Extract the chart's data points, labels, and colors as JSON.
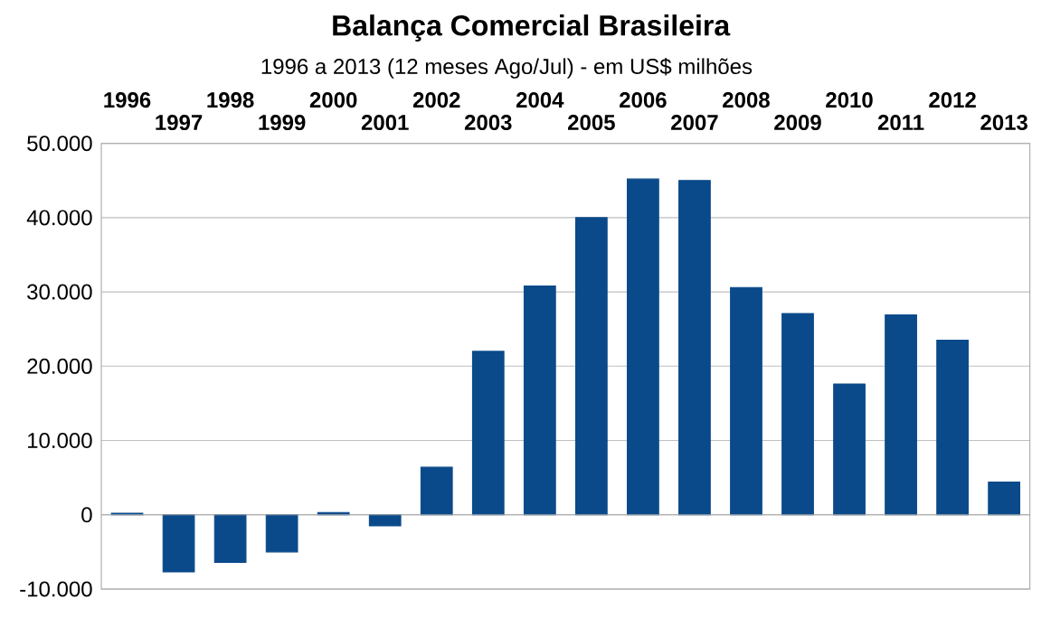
{
  "chart_data": {
    "type": "bar",
    "title": "Balança Comercial Brasileira",
    "subtitle": "1996 a 2013 (12 meses Ago/Jul) - em US$ milhões",
    "categories": [
      "1996",
      "1997",
      "1998",
      "1999",
      "2000",
      "2001",
      "2002",
      "2003",
      "2004",
      "2005",
      "2006",
      "2007",
      "2008",
      "2009",
      "2010",
      "2011",
      "2012",
      "2013"
    ],
    "values": [
      200,
      -7700,
      -6400,
      -5000,
      300,
      -1500,
      6400,
      22000,
      30800,
      40000,
      45200,
      45000,
      30600,
      27100,
      17600,
      26900,
      23500,
      4400
    ],
    "color": "#0a4a8a",
    "ylim": [
      -10000,
      50000
    ],
    "yticks": [
      {
        "value": -10000,
        "label": "-10.000"
      },
      {
        "value": 0,
        "label": "0"
      },
      {
        "value": 10000,
        "label": "10.000"
      },
      {
        "value": 20000,
        "label": "20.000"
      },
      {
        "value": 30000,
        "label": "30.000"
      },
      {
        "value": 40000,
        "label": "40.000"
      },
      {
        "value": 50000,
        "label": "50.000"
      }
    ],
    "grid": "y"
  }
}
